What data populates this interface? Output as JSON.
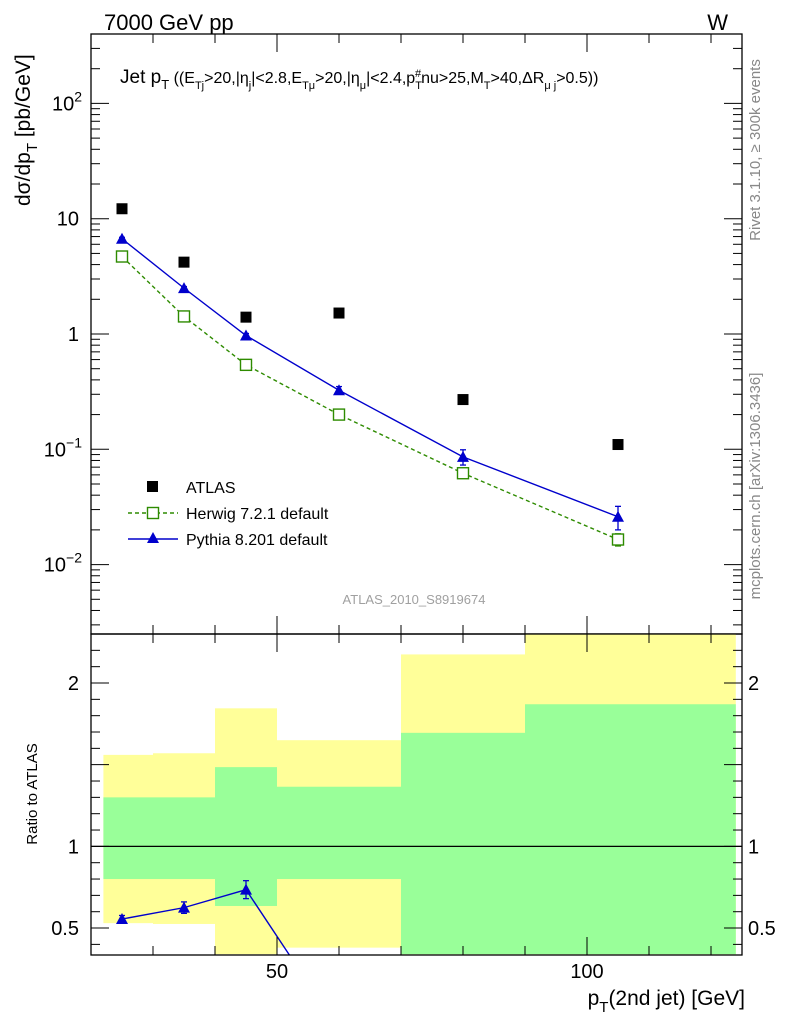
{
  "header": {
    "left": "7000 GeV pp",
    "right": "W"
  },
  "side_labels": {
    "rivet": "Rivet 3.1.10, ≥ 300k events",
    "mcplots": "mcplots.cern.ch [arXiv:1306.3436]"
  },
  "colors": {
    "atlas": "#000000",
    "herwig": "#2e8b00",
    "pythia": "#0000cc",
    "band_inner": "#99ff99",
    "band_outer": "#ffff99"
  },
  "chart_data": [
    {
      "type": "scatter",
      "title": "Jet p_T ((E_Tj>20,|η_j|<2.8,E_Tμ>20,|η_μ|<2.4,p_T^#nu>25,M_T>40,ΔR_μj>0.5))",
      "title_parts": {
        "jet": "Jet p",
        "jet_sub": "T",
        "t1": " ((E",
        "t1_sub": "Tj",
        "t2": ">20,|η",
        "t2_sub": "j",
        "t3": "|<2.8,E",
        "t3_sub": "Tμ",
        "t4": ">20,|η",
        "t4_sub": "μ",
        "t5": "|<2.4,p",
        "t5_sub": "T",
        "t5_sup": "#",
        "t6": "nu>25,M",
        "t6_sub": "T",
        "t7": ">40,ΔR",
        "t7_sub": "μ j",
        "t8": ">0.5))"
      },
      "ylabel": "dσ/dp_T [pb/GeV]",
      "ylabel_parts": {
        "main": "dσ/dp",
        "sub": "T",
        "rest": " [pb/GeV]"
      },
      "yscale": "log",
      "ylim": [
        0.0025,
        400
      ],
      "xlim": [
        20,
        125
      ],
      "ytick_labels": [
        {
          "value": 0.01,
          "mant": "10",
          "exp": "−2"
        },
        {
          "value": 0.1,
          "mant": "10",
          "exp": "−1"
        },
        {
          "value": 1,
          "mant": "1",
          "exp": ""
        },
        {
          "value": 10,
          "mant": "10",
          "exp": ""
        },
        {
          "value": 100,
          "mant": "10",
          "exp": "2"
        }
      ],
      "watermark": "ATLAS_2010_S8919674",
      "legend_position": "bottom-left",
      "series": [
        {
          "name": "ATLAS",
          "marker": "square-filled",
          "x": [
            25,
            35,
            45,
            60,
            80,
            105
          ],
          "y": [
            12.2,
            4.2,
            1.4,
            1.52,
            0.27,
            0.11
          ],
          "yerr": [
            0,
            0,
            0,
            0,
            0,
            0
          ]
        },
        {
          "name": "Herwig 7.2.1 default",
          "marker": "square-open",
          "line": "dashed",
          "x": [
            25,
            35,
            45,
            60,
            80,
            105
          ],
          "y": [
            4.7,
            1.42,
            0.54,
            0.2,
            0.062,
            0.0165
          ],
          "yerr": [
            0.15,
            0.05,
            0.02,
            0.012,
            0.004,
            0.002
          ]
        },
        {
          "name": "Pythia 8.201 default",
          "marker": "triangle-filled",
          "line": "solid",
          "x": [
            25,
            35,
            45,
            60,
            80,
            105
          ],
          "y": [
            6.7,
            2.5,
            0.97,
            0.325,
            0.086,
            0.026
          ],
          "yerr": [
            0.2,
            0.08,
            0.04,
            0.025,
            0.013,
            0.006
          ]
        }
      ]
    },
    {
      "type": "line",
      "xlabel": "p_T(2nd jet) [GeV]",
      "xlabel_parts": {
        "main": "p",
        "sub": "T",
        "rest": "(2nd jet) [GeV]"
      },
      "ylabel": "Ratio to ATLAS",
      "ylim": [
        0.335,
        2.3
      ],
      "xlim": [
        20,
        125
      ],
      "xtick_labels": [
        {
          "value": 50,
          "label": "50"
        },
        {
          "value": 100,
          "label": "100"
        }
      ],
      "ytick_labels": [
        {
          "value": 0.5,
          "label": "0.5"
        },
        {
          "value": 1,
          "label": "1"
        },
        {
          "value": 2,
          "label": "2"
        }
      ],
      "reference_line": 1,
      "bands": [
        {
          "x0": 22,
          "x1": 30,
          "inner": [
            0.8,
            1.3
          ],
          "outer": [
            0.53,
            1.56
          ]
        },
        {
          "x0": 30,
          "x1": 40,
          "inner": [
            0.8,
            1.3
          ],
          "outer": [
            0.525,
            1.57
          ]
        },
        {
          "x0": 40,
          "x1": 50,
          "inner": [
            0.635,
            1.485
          ],
          "outer": [
            0.34,
            1.845
          ]
        },
        {
          "x0": 50,
          "x1": 70,
          "inner": [
            0.8,
            1.365
          ],
          "outer": [
            0.38,
            1.65
          ]
        },
        {
          "x0": 70,
          "x1": 90,
          "inner": [
            0.34,
            1.695
          ],
          "outer": [
            0.34,
            2.175
          ]
        },
        {
          "x0": 90,
          "x1": 124,
          "inner": [
            0.34,
            1.87
          ],
          "outer": [
            0.34,
            2.3
          ]
        }
      ],
      "series": [
        {
          "name": "Pythia 8.201 default",
          "marker": "triangle-filled",
          "x": [
            25,
            35,
            45
          ],
          "y": [
            0.555,
            0.625,
            0.735
          ],
          "yerr": [
            0.022,
            0.035,
            0.055
          ],
          "trail_to": {
            "x": 52,
            "y": 0.335
          }
        }
      ]
    }
  ]
}
